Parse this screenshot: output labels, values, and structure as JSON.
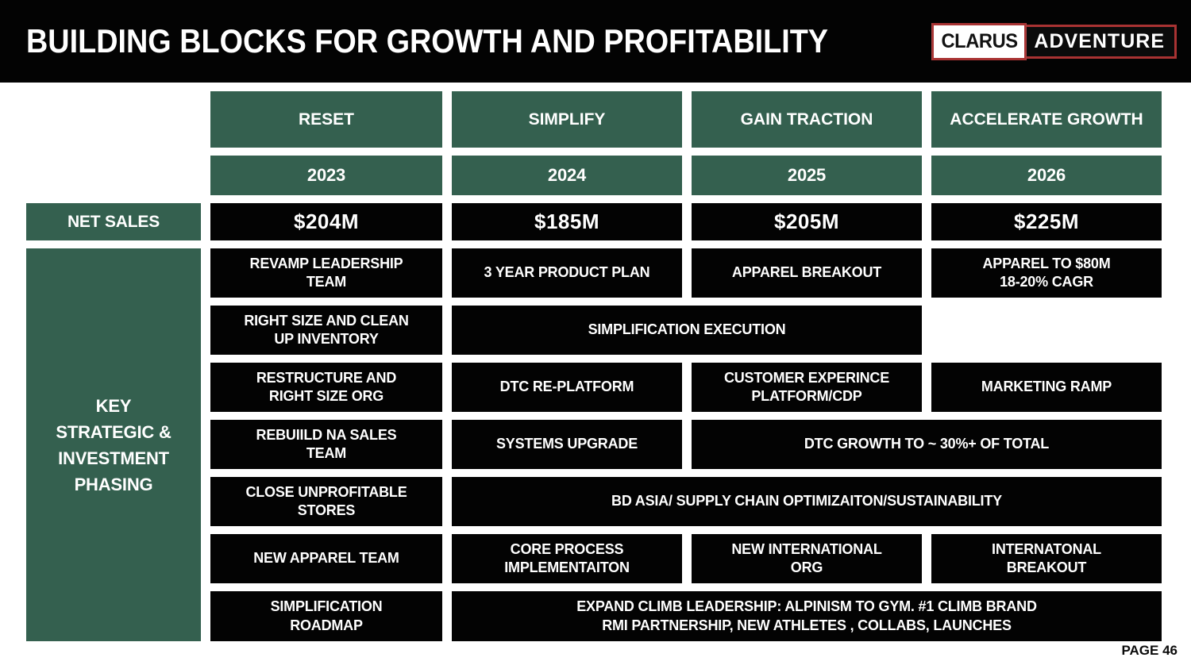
{
  "slide": {
    "title": "BUILDING BLOCKS FOR GROWTH AND PROFITABILITY",
    "page_label": "PAGE 46"
  },
  "logo": {
    "box_text": "CLARUS",
    "wordmark": "ADVENTURE"
  },
  "colors": {
    "green": "#34604F",
    "black": "#030303",
    "red": "#A93333"
  },
  "columns": [
    {
      "phase": "RESET",
      "year": "2023",
      "net_sales": "$204M"
    },
    {
      "phase": "SIMPLIFY",
      "year": "2024",
      "net_sales": "$185M"
    },
    {
      "phase": "GAIN TRACTION",
      "year": "2025",
      "net_sales": "$205M"
    },
    {
      "phase": "ACCELERATE GROWTH",
      "year": "2026",
      "net_sales": "$225M"
    }
  ],
  "row_labels": {
    "net_sales": "NET SALES",
    "phasing": "KEY\nSTRATEGIC &\nINVESTMENT\nPHASING"
  },
  "phasing_rows": [
    [
      "REVAMP LEADERSHIP\nTEAM",
      "3 YEAR PRODUCT PLAN",
      "APPAREL BREAKOUT",
      "APPAREL TO $80M\n18-20% CAGR"
    ],
    [
      "RIGHT SIZE AND CLEAN\nUP INVENTORY",
      "SIMPLIFICATION EXECUTION"
    ],
    [
      "RESTRUCTURE AND\nRIGHT SIZE ORG",
      "DTC RE-PLATFORM",
      "CUSTOMER EXPERINCE\nPLATFORM/CDP",
      "MARKETING RAMP"
    ],
    [
      "REBUIILD NA SALES\nTEAM",
      "SYSTEMS UPGRADE",
      "DTC GROWTH TO ~ 30%+ OF  TOTAL"
    ],
    [
      "CLOSE UNPROFITABLE\nSTORES",
      "BD ASIA/ SUPPLY CHAIN OPTIMIZAITON/SUSTAINABILITY"
    ],
    [
      "NEW APPAREL TEAM",
      "CORE PROCESS\nIMPLEMENTAITON",
      "NEW INTERNATIONAL\nORG",
      "INTERNATONAL\nBREAKOUT"
    ],
    [
      "SIMPLIFICATION\nROADMAP",
      "EXPAND CLIMB LEADERSHIP:  ALPINISM TO GYM.  #1 CLIMB BRAND\nRMI PARTNERSHIP, NEW ATHLETES , COLLABS, LAUNCHES"
    ]
  ]
}
